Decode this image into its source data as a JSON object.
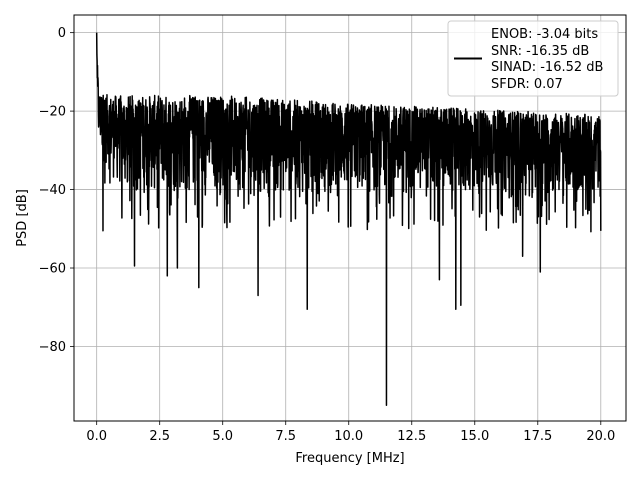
{
  "chart_data": {
    "type": "line",
    "title": "",
    "xlabel": "Frequency [MHz]",
    "ylabel": "PSD [dB]",
    "xlim": [
      -0.9,
      21.0
    ],
    "ylim": [
      -99.0,
      4.5
    ],
    "x_ticks": [
      0.0,
      2.5,
      5.0,
      7.5,
      10.0,
      12.5,
      15.0,
      17.5,
      20.0
    ],
    "x_tick_labels": [
      "0.0",
      "2.5",
      "5.0",
      "7.5",
      "10.0",
      "12.5",
      "15.0",
      "17.5",
      "20.0"
    ],
    "y_ticks": [
      0,
      -20,
      -40,
      -60,
      -80
    ],
    "y_tick_labels": [
      "0",
      "−20",
      "−40",
      "−60",
      "−80"
    ],
    "grid": true,
    "legend_position": "top-right",
    "series": [
      {
        "name": "ENOB: -3.04 bits\nSNR: -16.35 dB\nSINAD: -16.52 dB\nSFDR: 0.07",
        "color": "#000000",
        "x_range": [
          0.0,
          20.0
        ],
        "dc_peak_db": 0.0,
        "noise_floor_db": {
          "upper_envelope": [
            [
              0.0,
              -5
            ],
            [
              0.1,
              -15
            ],
            [
              0.5,
              -16
            ],
            [
              5.0,
              -16
            ],
            [
              10.0,
              -18
            ],
            [
              20.0,
              -21
            ]
          ],
          "typical_low": [
            [
              0.0,
              -30
            ],
            [
              1.0,
              -42
            ],
            [
              20.0,
              -43
            ]
          ]
        },
        "deep_notches": [
          {
            "x": 0.25,
            "y": -50.5
          },
          {
            "x": 1.5,
            "y": -59.5
          },
          {
            "x": 2.8,
            "y": -62
          },
          {
            "x": 3.2,
            "y": -60
          },
          {
            "x": 4.05,
            "y": -65
          },
          {
            "x": 6.4,
            "y": -67
          },
          {
            "x": 8.35,
            "y": -70.5
          },
          {
            "x": 11.5,
            "y": -95
          },
          {
            "x": 13.6,
            "y": -63
          },
          {
            "x": 14.25,
            "y": -70.5
          },
          {
            "x": 14.45,
            "y": -69.5
          },
          {
            "x": 16.9,
            "y": -57
          },
          {
            "x": 17.6,
            "y": -61
          }
        ]
      }
    ],
    "legend_lines": [
      "ENOB: -3.04 bits",
      "SNR: -16.35 dB",
      "SINAD: -16.52 dB",
      "SFDR: 0.07"
    ]
  }
}
